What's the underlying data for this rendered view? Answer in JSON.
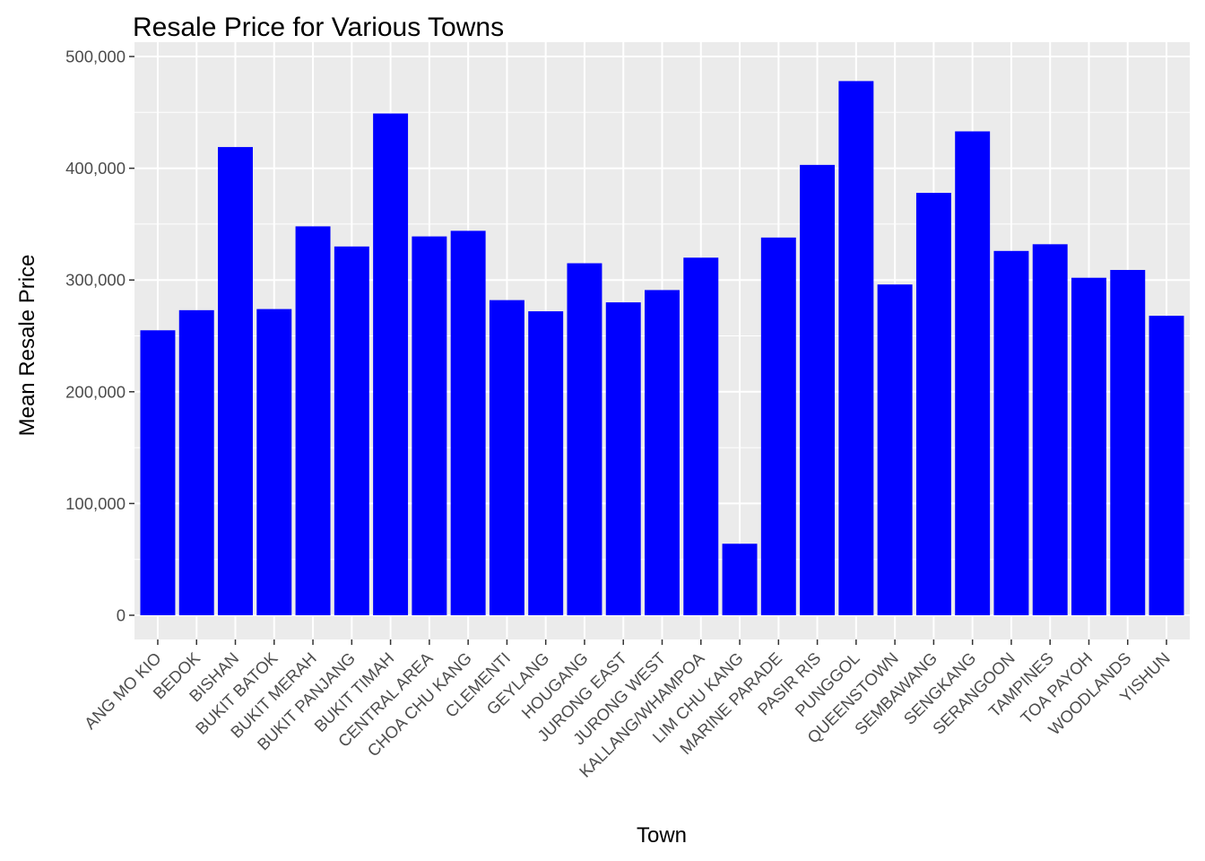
{
  "chart_data": {
    "type": "bar",
    "title": "Resale Price for Various Towns",
    "xlabel": "Town",
    "ylabel": "Mean Resale Price",
    "ylim": [
      -24000,
      501000
    ],
    "yticks": [
      0,
      100000,
      200000,
      300000,
      400000,
      500000
    ],
    "ytick_labels": [
      "0",
      "100,000",
      "200,000",
      "300,000",
      "400,000",
      "500,000"
    ],
    "grid": true,
    "bar_color": "#0000ff",
    "panel_color": "#ebebeb",
    "categories": [
      "ANG MO KIO",
      "BEDOK",
      "BISHAN",
      "BUKIT BATOK",
      "BUKIT MERAH",
      "BUKIT PANJANG",
      "BUKIT TIMAH",
      "CENTRAL AREA",
      "CHOA CHU KANG",
      "CLEMENTI",
      "GEYLANG",
      "HOUGANG",
      "JURONG EAST",
      "JURONG WEST",
      "KALLANG/WHAMPOA",
      "LIM CHU KANG",
      "MARINE PARADE",
      "PASIR RIS",
      "PUNGGOL",
      "QUEENSTOWN",
      "SEMBAWANG",
      "SENGKANG",
      "SERANGOON",
      "TAMPINES",
      "TOA PAYOH",
      "WOODLANDS",
      "YISHUN"
    ],
    "values": [
      255000,
      273000,
      419000,
      274000,
      348000,
      330000,
      449000,
      339000,
      344000,
      282000,
      272000,
      315000,
      280000,
      291000,
      320000,
      64000,
      338000,
      403000,
      478000,
      296000,
      378000,
      433000,
      326000,
      332000,
      302000,
      309000,
      268000
    ]
  }
}
